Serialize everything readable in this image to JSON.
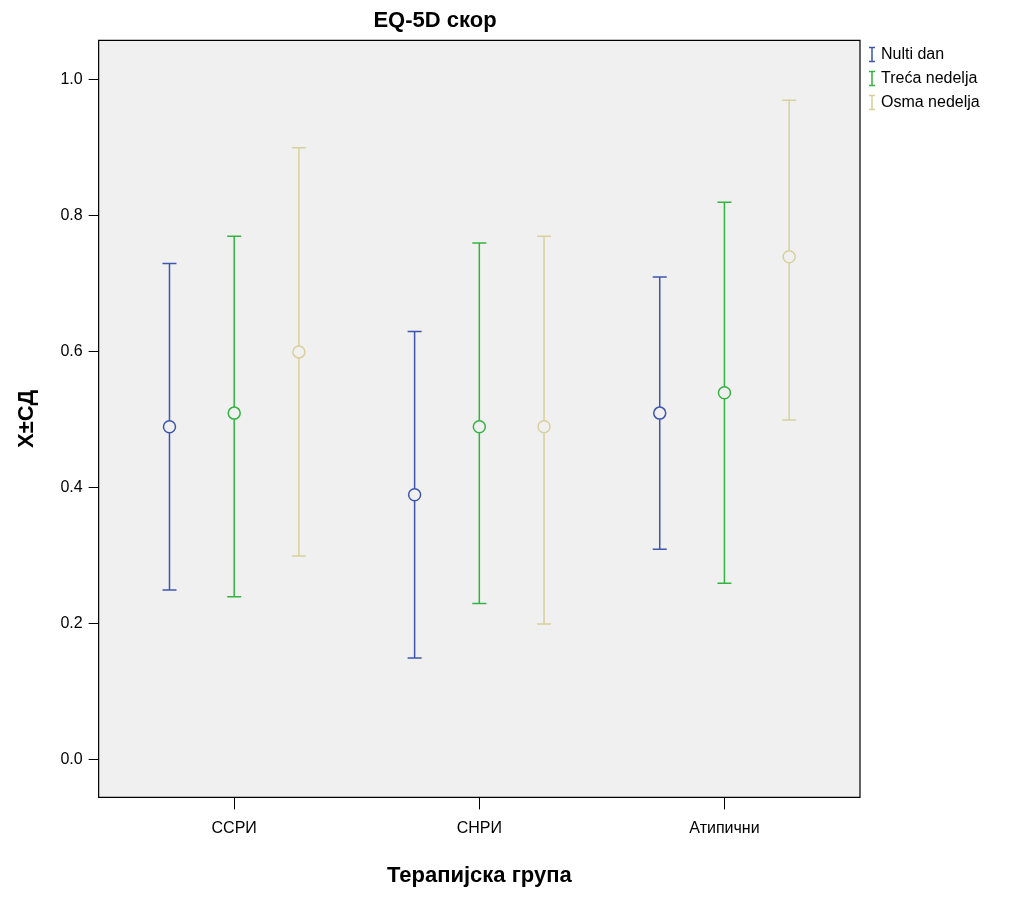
{
  "chart_data": {
    "type": "scatter",
    "title": "EQ-5D скор",
    "xlabel": "Терапијска група",
    "ylabel": "X±СД",
    "categories": [
      "ССРИ",
      "СНРИ",
      "Атипични"
    ],
    "series": [
      {
        "name": "Nulti dan",
        "color": "#3d55ad",
        "values": [
          0.49,
          0.39,
          0.51
        ],
        "errors": [
          [
            0.25,
            0.73
          ],
          [
            0.15,
            0.63
          ],
          [
            0.31,
            0.71
          ]
        ]
      },
      {
        "name": "Treća nedelja",
        "color": "#34b340",
        "values": [
          0.51,
          0.49,
          0.54
        ],
        "errors": [
          [
            0.24,
            0.77
          ],
          [
            0.23,
            0.76
          ],
          [
            0.26,
            0.82
          ]
        ]
      },
      {
        "name": "Osma nedelja",
        "color": "#d8d09b",
        "values": [
          0.6,
          0.49,
          0.74
        ],
        "errors": [
          [
            0.3,
            0.9
          ],
          [
            0.2,
            0.77
          ],
          [
            0.5,
            0.97
          ]
        ]
      }
    ],
    "ylim": [
      -0.055,
      1.058
    ],
    "yticks": [
      {
        "value": 0,
        "label": "0.0"
      },
      0.2,
      0.4,
      0.6,
      0.8,
      {
        "value": 1,
        "label": "1.0"
      }
    ],
    "marker": "circle",
    "legend": "top right"
  }
}
